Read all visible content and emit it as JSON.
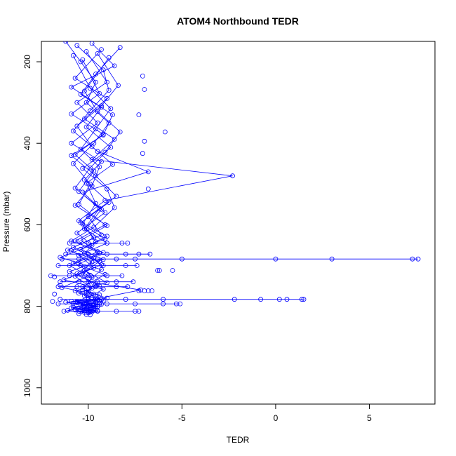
{
  "chart_data": {
    "type": "line",
    "title": "ATOM4 Northbound TEDR",
    "xlabel": "TEDR",
    "ylabel": "Pressure (mbar)",
    "xlim": [
      -12.5,
      8.5
    ],
    "ylim": [
      1040,
      150
    ],
    "y_reversed": true,
    "grid": false,
    "x_ticks": [
      -10,
      -5,
      0,
      5
    ],
    "x_tick_labels": [
      "-10",
      "-5",
      "0",
      "5"
    ],
    "y_ticks": [
      200,
      400,
      600,
      800,
      1000
    ],
    "y_tick_labels": [
      "200",
      "400",
      "600",
      "800",
      "1000"
    ],
    "marker": "open-circle",
    "color": "#0000ff",
    "series": [
      {
        "x": [
          -11.2,
          -10.4,
          -9.6,
          -10.1,
          -8.9,
          -9.7,
          -10.8,
          -9.9,
          -10.5,
          -9.1,
          -10.7,
          -9.4,
          -11.0,
          -9.8,
          -10.3,
          -9.0,
          -10.6,
          -9.5,
          -11.1,
          -10.2
        ],
        "y": [
          150,
          200,
          250,
          300,
          350,
          400,
          450,
          500,
          550,
          600,
          640,
          670,
          700,
          730,
          760,
          780,
          790,
          800,
          810,
          815
        ]
      },
      {
        "x": [
          -9.8,
          -8.6,
          -10.9,
          -9.3,
          -10.1,
          -8.8,
          -9.9,
          -10.7,
          -9.4,
          -10.2,
          -9.0,
          -10.5,
          -9.7,
          -11.3,
          -9.2,
          -10.0,
          -9.6,
          -10.8,
          -9.9,
          -10.4
        ],
        "y": [
          155,
          210,
          262,
          312,
          360,
          410,
          460,
          510,
          560,
          610,
          645,
          675,
          705,
          735,
          758,
          779,
          792,
          802,
          810,
          812
        ]
      },
      {
        "x": [
          -10.6,
          -9.2,
          -8.9,
          -9.9,
          -10.8,
          -9.5,
          -6.8,
          -10.3,
          -9.1,
          -10.6,
          -9.8,
          -11.5,
          -9.3,
          -10.0,
          -7.2,
          -9.6,
          -10.9,
          -9.4,
          -10.1,
          -9.7
        ],
        "y": [
          160,
          220,
          270,
          320,
          370,
          420,
          470,
          520,
          570,
          620,
          650,
          680,
          710,
          740,
          760,
          782,
          788,
          795,
          805,
          810
        ]
      },
      {
        "x": [
          -8.3,
          -9.6,
          -10.4,
          -8.7,
          -9.2,
          -10.9,
          -9.6,
          -8.5,
          -10.0,
          -9.3,
          -10.8,
          -9.7,
          -10.2,
          -9.0,
          -10.7,
          -9.5,
          -11.2,
          -9.9,
          -10.3,
          -9.8
        ],
        "y": [
          165,
          230,
          280,
          330,
          380,
          430,
          480,
          530,
          580,
          625,
          655,
          682,
          712,
          742,
          762,
          783,
          790,
          798,
          806,
          811
        ]
      },
      {
        "x": [
          -9.3,
          -10.7,
          -9.0,
          -10.2,
          -8.6,
          -9.8,
          -2.3,
          -9.1,
          -10.5,
          -9.0,
          -10.4,
          -9.2,
          -11.0,
          -9.6,
          -10.1,
          -9.3,
          -10.6,
          -9.7,
          -10.2,
          -9.9
        ],
        "y": [
          170,
          240,
          290,
          340,
          390,
          440,
          480,
          540,
          590,
          628,
          660,
          685,
          715,
          745,
          765,
          784,
          791,
          799,
          807,
          812
        ]
      },
      {
        "x": [
          -10.1,
          -9.0,
          -10.6,
          -9.5,
          -10.9,
          -9.3,
          -10.2,
          -8.9,
          -10.4,
          -9.7,
          -11.1,
          -9.4,
          -10.3,
          -9.9,
          -10.0,
          -9.5,
          -10.8,
          -9.6,
          -10.4,
          -9.8
        ],
        "y": [
          175,
          250,
          300,
          350,
          400,
          445,
          490,
          545,
          595,
          632,
          662,
          690,
          718,
          748,
          766,
          786,
          793,
          800,
          808,
          814
        ]
      },
      {
        "x": [
          -9.5,
          -8.4,
          -9.3,
          -10.6,
          -9.8,
          -8.7,
          -10.1,
          -9.6,
          -10.3,
          -9.1,
          -10.9,
          -9.8,
          -10.6,
          -9.4,
          -10.5,
          -9.2,
          -10.1,
          -9.5,
          -10.7,
          -10.0
        ],
        "y": [
          180,
          258,
          308,
          358,
          408,
          452,
          498,
          548,
          598,
          635,
          664,
          692,
          720,
          750,
          768,
          787,
          794,
          801,
          809,
          816
        ]
      },
      {
        "x": [
          -10.8,
          -9.9,
          -8.8,
          -9.6,
          -10.4,
          -9.4,
          -9.8,
          -10.7,
          -9.0,
          -10.4,
          -9.5,
          -10.8,
          -9.1,
          -10.3,
          -9.7,
          -10.6,
          -9.3,
          -10.2,
          -9.6,
          -10.5
        ],
        "y": [
          185,
          265,
          315,
          365,
          415,
          458,
          505,
          552,
          602,
          638,
          666,
          694,
          722,
          752,
          770,
          788,
          795,
          803,
          810,
          818
        ]
      },
      {
        "x": [
          -8.9,
          -10.2,
          -9.5,
          -8.3,
          -9.1,
          -10.3,
          -9.0,
          -8.6,
          -9.7,
          -10.9,
          -9.2,
          -10.5,
          -9.9,
          -11.4,
          -9.4,
          -10.0,
          -9.8,
          -10.9,
          -9.5,
          -10.1
        ],
        "y": [
          190,
          272,
          322,
          372,
          422,
          462,
          512,
          558,
          606,
          640,
          668,
          696,
          724,
          754,
          772,
          789,
          796,
          804,
          811,
          820
        ]
      },
      {
        "x": [
          -10.3,
          -9.4,
          -10.9,
          -9.2,
          -10.7,
          -9.7,
          -10.5,
          -9.3,
          -10.1,
          -9.6,
          -10.2,
          -9.3,
          -10.7,
          -9.8,
          -10.2,
          -9.6,
          -10.4,
          -9.7,
          -10.0,
          -9.9
        ],
        "y": [
          195,
          278,
          328,
          378,
          428,
          468,
          518,
          562,
          610,
          642,
          670,
          698,
          726,
          756,
          774,
          790,
          797,
          805,
          812,
          821
        ]
      }
    ],
    "highlight_points": [
      {
        "x": -5.9,
        "y": 372
      },
      {
        "x": -7.0,
        "y": 395
      },
      {
        "x": -7.1,
        "y": 425
      },
      {
        "x": -6.8,
        "y": 512
      },
      {
        "x": -7.3,
        "y": 330
      },
      {
        "x": -7.0,
        "y": 268
      },
      {
        "x": -7.1,
        "y": 235
      },
      {
        "x": -5.5,
        "y": 712
      },
      {
        "x": -6.3,
        "y": 712
      },
      {
        "x": -6.2,
        "y": 712
      },
      {
        "x": -7.3,
        "y": 762
      },
      {
        "x": -7.0,
        "y": 762
      },
      {
        "x": -6.8,
        "y": 762
      },
      {
        "x": -6.6,
        "y": 762
      },
      {
        "x": -11.8,
        "y": 728
      },
      {
        "x": -11.5,
        "y": 748
      },
      {
        "x": -11.8,
        "y": 770
      },
      {
        "x": -11.9,
        "y": 788
      }
    ],
    "spike_lines": [
      {
        "y": 684,
        "x": [
          -11.4,
          -10.5,
          -9.5,
          -8.5,
          -7.5,
          -5.0,
          0.0,
          3.0,
          7.3,
          7.6
        ]
      },
      {
        "y": 783,
        "x": [
          -11.5,
          -10.0,
          -8.0,
          -6.0,
          -2.2,
          -0.8,
          0.2,
          0.6,
          1.4,
          1.5
        ]
      },
      {
        "y": 794,
        "x": [
          -11.6,
          -10.2,
          -9.0,
          -7.5,
          -6.0,
          -5.3,
          -5.1
        ]
      },
      {
        "y": 812,
        "x": [
          -11.3,
          -10.5,
          -9.5,
          -8.5,
          -7.5,
          -7.3
        ]
      },
      {
        "y": 672,
        "x": [
          -11.2,
          -10.0,
          -9.0,
          -8.0,
          -7.3,
          -6.7
        ]
      },
      {
        "y": 740,
        "x": [
          -11.5,
          -10.5,
          -9.5,
          -8.5,
          -7.6
        ]
      },
      {
        "y": 752,
        "x": [
          -11.6,
          -10.6,
          -9.6,
          -8.5,
          -7.9
        ]
      },
      {
        "y": 725,
        "x": [
          -12.0,
          -11.0,
          -10.0,
          -9.0,
          -8.2
        ]
      },
      {
        "y": 700,
        "x": [
          -11.6,
          -10.4,
          -9.2,
          -8.0,
          -7.4
        ]
      },
      {
        "y": 645,
        "x": [
          -11.0,
          -10.0,
          -9.0,
          -8.2,
          -7.9
        ]
      }
    ]
  }
}
